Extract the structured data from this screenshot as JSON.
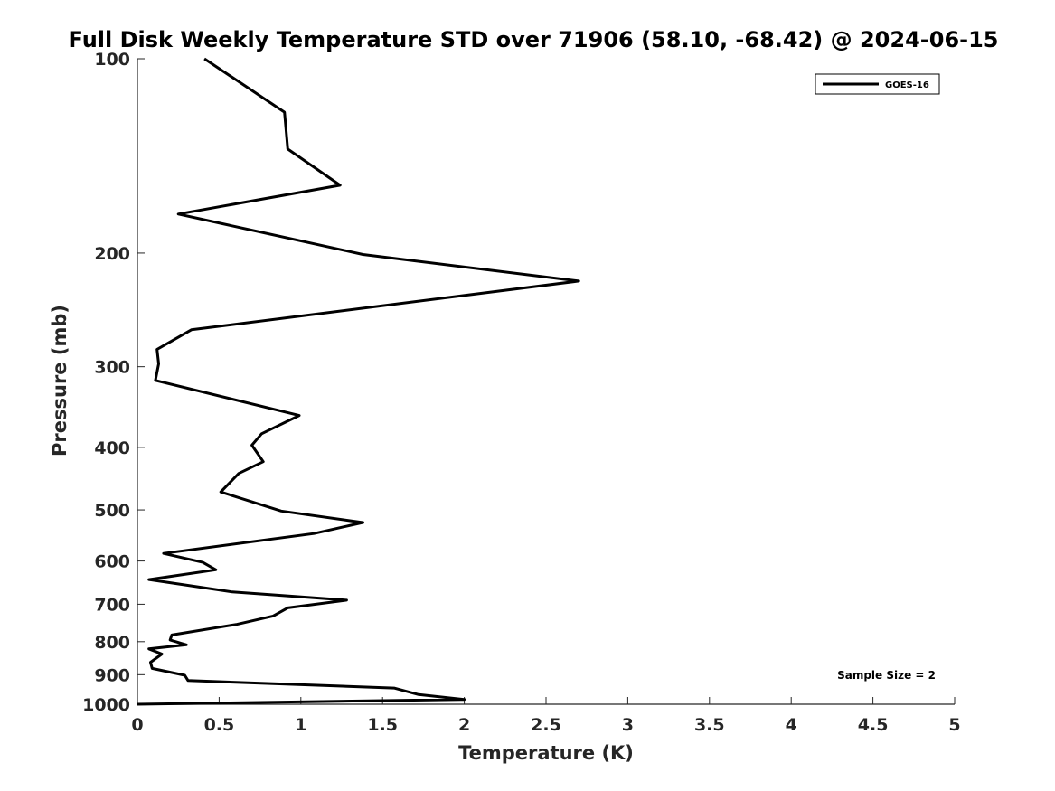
{
  "chart_data": {
    "type": "line",
    "title": "Full Disk Weekly Temperature STD over 71906 (58.10, -68.42) @ 2024-06-15",
    "xlabel": "Temperature (K)",
    "ylabel": "Pressure (mb)",
    "xlim": [
      0,
      5
    ],
    "ylim": [
      100,
      1000
    ],
    "y_scale": "log",
    "y_reversed": true,
    "xticks": [
      "0",
      "0.5",
      "1",
      "1.5",
      "2",
      "2.5",
      "3",
      "3.5",
      "4",
      "4.5",
      "5"
    ],
    "yticks": [
      "100",
      "200",
      "300",
      "400",
      "500",
      "600",
      "700",
      "800",
      "900",
      "1000"
    ],
    "grid": false,
    "legend_position": "top-right",
    "series": [
      {
        "name": "GOES-16",
        "color": "#000000",
        "x": [
          0.41,
          0.9,
          0.92,
          1.24,
          0.25,
          1.38,
          2.7,
          0.33,
          0.12,
          0.13,
          0.11,
          0.99,
          0.76,
          0.7,
          0.77,
          0.62,
          0.51,
          0.88,
          1.38,
          1.08,
          0.16,
          0.4,
          0.48,
          0.07,
          0.58,
          1.28,
          0.92,
          0.83,
          0.61,
          0.21,
          0.2,
          0.3,
          0.07,
          0.15,
          0.08,
          0.09,
          0.29,
          0.31,
          1.57,
          1.72,
          2.0,
          0.0
        ],
        "y": [
          100,
          121,
          138,
          157,
          174,
          201,
          221,
          263,
          282,
          297,
          315,
          357,
          381,
          397,
          421,
          439,
          469,
          502,
          523,
          544,
          584,
          603,
          619,
          641,
          670,
          690,
          709,
          730,
          752,
          781,
          795,
          809,
          821,
          836,
          861,
          880,
          902,
          919,
          944,
          966,
          983,
          1000
        ]
      }
    ],
    "annotation": "Sample Size = 2"
  }
}
